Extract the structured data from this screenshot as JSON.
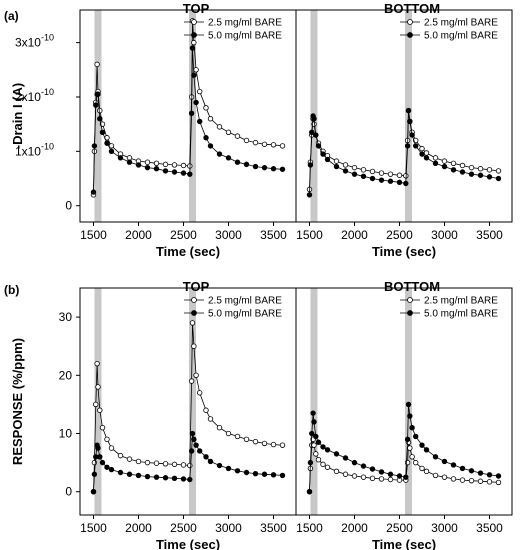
{
  "panel_labels": {
    "a": "(a)",
    "b": "(b)"
  },
  "legend": {
    "open": "2.5 mg/ml BARE",
    "filled": "5.0 mg/ml BARE"
  },
  "chart_data": [
    {
      "type": "line",
      "title": "TOP",
      "xlabel": "Time (sec)",
      "ylabel": "-Drain I (A)",
      "xlim": [
        1350,
        3750
      ],
      "ylim": [
        -0.3,
        3.6
      ],
      "xticks": [
        "1500",
        "2000",
        "2500",
        "3000",
        "3500"
      ],
      "yticks": [
        "0",
        "1x10",
        "2x10",
        "3x10"
      ],
      "ytick_exponent": "-10",
      "highlight_x": [
        1550,
        2600
      ],
      "series": [
        {
          "name": "2.5 mg/ml BARE",
          "marker": "open",
          "x": [
            1500,
            1510,
            1525,
            1540,
            1550,
            1570,
            1600,
            1650,
            1700,
            1800,
            1900,
            2000,
            2100,
            2200,
            2300,
            2400,
            2500,
            2570,
            2590,
            2600,
            2615,
            2640,
            2680,
            2750,
            2800,
            2900,
            3000,
            3100,
            3200,
            3300,
            3400,
            3500,
            3600
          ],
          "y": [
            0.2,
            1.0,
            1.9,
            2.6,
            2.1,
            1.75,
            1.5,
            1.25,
            1.1,
            0.95,
            0.88,
            0.82,
            0.8,
            0.78,
            0.76,
            0.75,
            0.74,
            0.73,
            2.0,
            3.4,
            3.0,
            2.5,
            2.1,
            1.8,
            1.6,
            1.45,
            1.35,
            1.28,
            1.2,
            1.16,
            1.13,
            1.12,
            1.1
          ]
        },
        {
          "name": "5.0 mg/ml BARE",
          "marker": "filled",
          "x": [
            1500,
            1510,
            1525,
            1540,
            1550,
            1570,
            1600,
            1650,
            1700,
            1800,
            1900,
            2000,
            2100,
            2200,
            2300,
            2400,
            2500,
            2570,
            2590,
            2600,
            2615,
            2640,
            2680,
            2750,
            2800,
            2900,
            3000,
            3100,
            3200,
            3300,
            3400,
            3500,
            3600
          ],
          "y": [
            0.25,
            1.1,
            1.85,
            2.05,
            2.05,
            1.6,
            1.35,
            1.15,
            1.0,
            0.88,
            0.8,
            0.75,
            0.7,
            0.68,
            0.64,
            0.62,
            0.6,
            0.58,
            1.7,
            2.9,
            2.4,
            1.9,
            1.55,
            1.25,
            1.1,
            0.95,
            0.88,
            0.8,
            0.76,
            0.72,
            0.7,
            0.68,
            0.67
          ]
        }
      ]
    },
    {
      "type": "line",
      "title": "BOTTOM",
      "xlabel": "Time (sec)",
      "ylabel": "",
      "xlim": [
        1350,
        3750
      ],
      "ylim": [
        -0.3,
        3.6
      ],
      "xticks": [
        "1500",
        "2000",
        "2500",
        "3000",
        "3500"
      ],
      "yticks": [],
      "highlight_x": [
        1550,
        2600
      ],
      "series": [
        {
          "name": "2.5 mg/ml BARE",
          "marker": "open",
          "x": [
            1500,
            1510,
            1525,
            1540,
            1550,
            1570,
            1600,
            1650,
            1700,
            1800,
            1900,
            2000,
            2100,
            2200,
            2300,
            2400,
            2500,
            2570,
            2590,
            2600,
            2615,
            2640,
            2680,
            2750,
            2800,
            2900,
            3000,
            3100,
            3200,
            3300,
            3400,
            3500,
            3600
          ],
          "y": [
            0.3,
            0.8,
            1.3,
            1.6,
            1.5,
            1.3,
            1.15,
            1.0,
            0.92,
            0.82,
            0.75,
            0.7,
            0.66,
            0.63,
            0.6,
            0.58,
            0.56,
            0.55,
            1.2,
            1.75,
            1.55,
            1.35,
            1.2,
            1.05,
            0.97,
            0.88,
            0.82,
            0.78,
            0.74,
            0.7,
            0.68,
            0.66,
            0.64
          ]
        },
        {
          "name": "5.0 mg/ml BARE",
          "marker": "filled",
          "x": [
            1500,
            1510,
            1525,
            1540,
            1550,
            1570,
            1600,
            1650,
            1700,
            1800,
            1900,
            2000,
            2100,
            2200,
            2300,
            2400,
            2500,
            2570,
            2590,
            2600,
            2615,
            2640,
            2680,
            2750,
            2800,
            2900,
            3000,
            3100,
            3200,
            3300,
            3400,
            3500,
            3600
          ],
          "y": [
            0.2,
            0.75,
            1.35,
            1.65,
            1.6,
            1.3,
            1.1,
            0.95,
            0.85,
            0.72,
            0.64,
            0.58,
            0.54,
            0.5,
            0.47,
            0.45,
            0.43,
            0.41,
            1.1,
            1.75,
            1.55,
            1.3,
            1.1,
            0.95,
            0.88,
            0.78,
            0.72,
            0.66,
            0.62,
            0.58,
            0.56,
            0.53,
            0.5
          ]
        }
      ]
    },
    {
      "type": "line",
      "title": "TOP",
      "xlabel": "Time (sec)",
      "ylabel": "RESPONSE (%/ppm)",
      "xlim": [
        1350,
        3750
      ],
      "ylim": [
        -4,
        35
      ],
      "xticks": [
        "1500",
        "2000",
        "2500",
        "3000",
        "3500"
      ],
      "yticks": [
        "0",
        "10",
        "20",
        "30"
      ],
      "highlight_x": [
        1550,
        2600
      ],
      "series": [
        {
          "name": "2.5 mg/ml BARE",
          "marker": "open",
          "x": [
            1500,
            1510,
            1525,
            1540,
            1550,
            1570,
            1600,
            1650,
            1700,
            1800,
            1900,
            2000,
            2100,
            2200,
            2300,
            2400,
            2500,
            2570,
            2590,
            2600,
            2615,
            2640,
            2680,
            2750,
            2800,
            2900,
            3000,
            3100,
            3200,
            3300,
            3400,
            3500,
            3600
          ],
          "y": [
            0,
            5,
            15,
            22,
            18,
            14,
            11,
            9,
            7.5,
            6.2,
            5.6,
            5.2,
            5.0,
            4.9,
            4.8,
            4.7,
            4.6,
            4.5,
            19,
            29,
            25,
            20,
            17,
            14,
            12.5,
            11,
            10,
            9.5,
            9.0,
            8.6,
            8.3,
            8.1,
            8.0
          ]
        },
        {
          "name": "5.0 mg/ml BARE",
          "marker": "filled",
          "x": [
            1500,
            1510,
            1525,
            1540,
            1550,
            1570,
            1600,
            1650,
            1700,
            1800,
            1900,
            2000,
            2100,
            2200,
            2300,
            2400,
            2500,
            2570,
            2590,
            2600,
            2615,
            2640,
            2680,
            2750,
            2800,
            2900,
            3000,
            3100,
            3200,
            3300,
            3400,
            3500,
            3600
          ],
          "y": [
            0,
            3,
            6,
            8,
            7.5,
            6,
            5,
            4.2,
            3.8,
            3.3,
            3.0,
            2.8,
            2.6,
            2.5,
            2.4,
            2.3,
            2.2,
            2.1,
            7,
            10,
            9,
            8,
            7,
            6,
            5.2,
            4.5,
            4.0,
            3.6,
            3.3,
            3.1,
            3.0,
            2.9,
            2.8
          ]
        }
      ]
    },
    {
      "type": "line",
      "title": "BOTTOM",
      "xlabel": "Time (sec)",
      "ylabel": "",
      "xlim": [
        1350,
        3750
      ],
      "ylim": [
        -4,
        35
      ],
      "xticks": [
        "1500",
        "2000",
        "2500",
        "3000",
        "3500"
      ],
      "yticks": [],
      "highlight_x": [
        1550,
        2600
      ],
      "series": [
        {
          "name": "2.5 mg/ml BARE",
          "marker": "open",
          "x": [
            1500,
            1510,
            1525,
            1540,
            1550,
            1570,
            1600,
            1650,
            1700,
            1800,
            1900,
            2000,
            2100,
            2200,
            2300,
            2400,
            2500,
            2570,
            2590,
            2600,
            2615,
            2640,
            2680,
            2750,
            2800,
            2900,
            3000,
            3100,
            3200,
            3300,
            3400,
            3500,
            3600
          ],
          "y": [
            0,
            4,
            8,
            9,
            8,
            6.5,
            5.5,
            4.7,
            4.2,
            3.5,
            3.0,
            2.7,
            2.5,
            2.3,
            2.2,
            2.1,
            2.0,
            2.0,
            5,
            8.5,
            7.5,
            6,
            5,
            4,
            3.5,
            2.8,
            2.5,
            2.2,
            2.0,
            1.9,
            1.8,
            1.7,
            1.6
          ]
        },
        {
          "name": "5.0 mg/ml BARE",
          "marker": "filled",
          "x": [
            1500,
            1510,
            1525,
            1540,
            1550,
            1570,
            1600,
            1650,
            1700,
            1800,
            1900,
            2000,
            2100,
            2200,
            2300,
            2400,
            2500,
            2570,
            2590,
            2600,
            2615,
            2640,
            2680,
            2750,
            2800,
            2900,
            3000,
            3100,
            3200,
            3300,
            3400,
            3500,
            3600
          ],
          "y": [
            0,
            5,
            10,
            13.5,
            12,
            9.5,
            8.5,
            7.7,
            7.2,
            6.5,
            5.8,
            5.0,
            4.4,
            3.9,
            3.4,
            3.0,
            2.7,
            2.5,
            9,
            15,
            13,
            11,
            9.5,
            8,
            7.2,
            6.0,
            5.2,
            4.6,
            4.0,
            3.6,
            3.2,
            2.9,
            2.7
          ]
        }
      ]
    }
  ]
}
